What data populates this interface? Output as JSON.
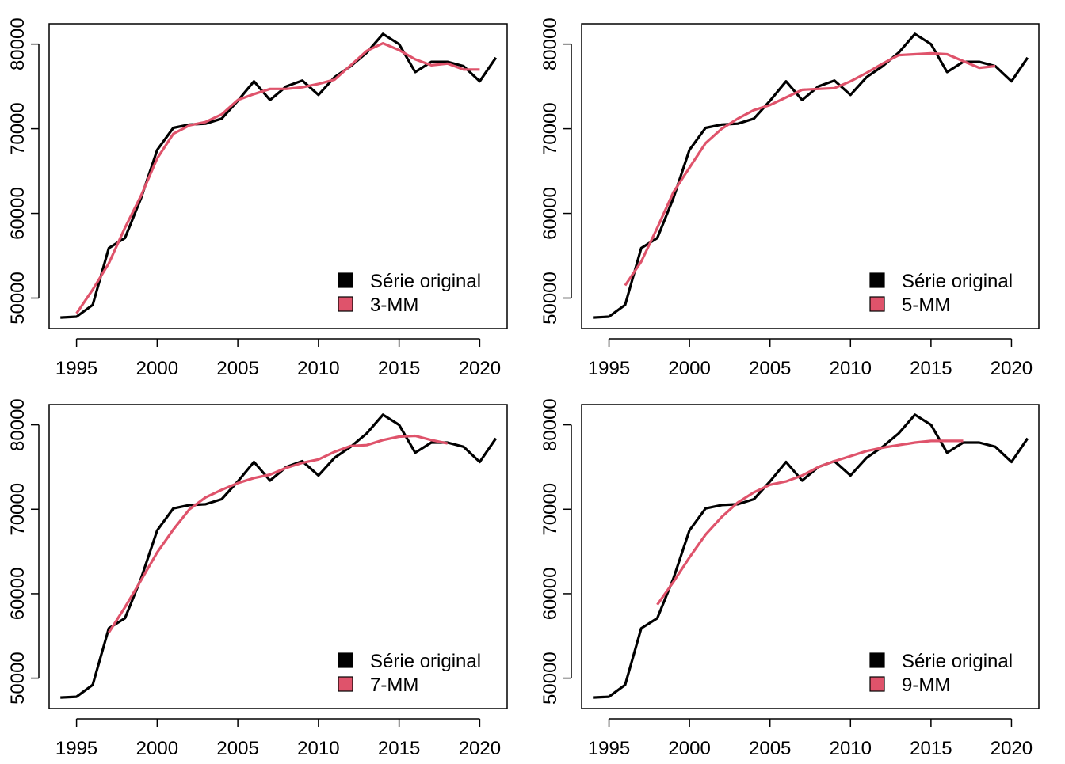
{
  "chart_data": [
    {
      "type": "line",
      "title": "",
      "xlabel": "",
      "ylabel": "",
      "xlim": [
        1993.3,
        2021.7
      ],
      "ylim": [
        46400,
        82400
      ],
      "x_ticks": [
        1995,
        2000,
        2005,
        2010,
        2015,
        2020
      ],
      "y_ticks": [
        50000,
        60000,
        70000,
        80000
      ],
      "legend_position": "bottom-right",
      "grid": false,
      "series": [
        {
          "name": "Série original",
          "color": "#000000",
          "x": [
            1994,
            1995,
            1996,
            1997,
            1998,
            1999,
            2000,
            2001,
            2002,
            2003,
            2004,
            2005,
            2006,
            2007,
            2008,
            2009,
            2010,
            2011,
            2012,
            2013,
            2014,
            2015,
            2016,
            2017,
            2018,
            2019,
            2020,
            2021
          ],
          "values": [
            47700,
            47800,
            49200,
            55900,
            57100,
            61800,
            67500,
            70100,
            70500,
            70600,
            71200,
            73300,
            75600,
            73400,
            75000,
            75700,
            74000,
            76100,
            77400,
            79000,
            81200,
            80000,
            76700,
            77900,
            77900,
            77400,
            75600,
            78400
          ]
        },
        {
          "name": "3-MM",
          "color": "#DF536B",
          "x": [
            1995,
            1996,
            1997,
            1998,
            1999,
            2000,
            2001,
            2002,
            2003,
            2004,
            2005,
            2006,
            2007,
            2008,
            2009,
            2010,
            2011,
            2012,
            2013,
            2014,
            2015,
            2016,
            2017,
            2018,
            2019,
            2020
          ],
          "values": [
            48200,
            51000,
            54100,
            58300,
            62100,
            66500,
            69400,
            70400,
            70800,
            71700,
            73400,
            74100,
            74700,
            74700,
            74900,
            75300,
            75800,
            77500,
            79200,
            80100,
            79300,
            78200,
            77500,
            77700,
            77000,
            77000
          ]
        }
      ]
    },
    {
      "type": "line",
      "title": "",
      "xlabel": "",
      "ylabel": "",
      "xlim": [
        1993.3,
        2021.7
      ],
      "ylim": [
        46400,
        82400
      ],
      "x_ticks": [
        1995,
        2000,
        2005,
        2010,
        2015,
        2020
      ],
      "y_ticks": [
        50000,
        60000,
        70000,
        80000
      ],
      "legend_position": "bottom-right",
      "grid": false,
      "series": [
        {
          "name": "Série original",
          "color": "#000000",
          "x": [
            1994,
            1995,
            1996,
            1997,
            1998,
            1999,
            2000,
            2001,
            2002,
            2003,
            2004,
            2005,
            2006,
            2007,
            2008,
            2009,
            2010,
            2011,
            2012,
            2013,
            2014,
            2015,
            2016,
            2017,
            2018,
            2019,
            2020,
            2021
          ],
          "values": [
            47700,
            47800,
            49200,
            55900,
            57100,
            61800,
            67500,
            70100,
            70500,
            70600,
            71200,
            73300,
            75600,
            73400,
            75000,
            75700,
            74000,
            76100,
            77400,
            79000,
            81200,
            80000,
            76700,
            77900,
            77900,
            77400,
            75600,
            78400
          ]
        },
        {
          "name": "5-MM",
          "color": "#DF536B",
          "x": [
            1996,
            1997,
            1998,
            1999,
            2000,
            2001,
            2002,
            2003,
            2004,
            2005,
            2006,
            2007,
            2008,
            2009,
            2010,
            2011,
            2012,
            2013,
            2014,
            2015,
            2016,
            2017,
            2018,
            2019
          ],
          "values": [
            51500,
            54300,
            58300,
            62500,
            65400,
            68300,
            70000,
            71200,
            72200,
            72800,
            73700,
            74600,
            74700,
            74800,
            75600,
            76600,
            77700,
            78700,
            78800,
            78900,
            78800,
            78000,
            77200,
            77400
          ]
        }
      ]
    },
    {
      "type": "line",
      "title": "",
      "xlabel": "",
      "ylabel": "",
      "xlim": [
        1993.3,
        2021.7
      ],
      "ylim": [
        46400,
        82400
      ],
      "x_ticks": [
        1995,
        2000,
        2005,
        2010,
        2015,
        2020
      ],
      "y_ticks": [
        50000,
        60000,
        70000,
        80000
      ],
      "legend_position": "bottom-right",
      "grid": false,
      "series": [
        {
          "name": "Série original",
          "color": "#000000",
          "x": [
            1994,
            1995,
            1996,
            1997,
            1998,
            1999,
            2000,
            2001,
            2002,
            2003,
            2004,
            2005,
            2006,
            2007,
            2008,
            2009,
            2010,
            2011,
            2012,
            2013,
            2014,
            2015,
            2016,
            2017,
            2018,
            2019,
            2020,
            2021
          ],
          "values": [
            47700,
            47800,
            49200,
            55900,
            57100,
            61800,
            67500,
            70100,
            70500,
            70600,
            71200,
            73300,
            75600,
            73400,
            75000,
            75700,
            74000,
            76100,
            77400,
            79000,
            81200,
            80000,
            76700,
            77900,
            77900,
            77400,
            75600,
            78400
          ]
        },
        {
          "name": "7-MM",
          "color": "#DF536B",
          "x": [
            1997,
            1998,
            1999,
            2000,
            2001,
            2002,
            2003,
            2004,
            2005,
            2006,
            2007,
            2008,
            2009,
            2010,
            2011,
            2012,
            2013,
            2014,
            2015,
            2016,
            2017,
            2018
          ],
          "values": [
            55400,
            58400,
            61600,
            64900,
            67600,
            70000,
            71400,
            72300,
            73100,
            73700,
            74100,
            74900,
            75500,
            75900,
            76800,
            77500,
            77600,
            78200,
            78600,
            78700,
            78200,
            77800
          ]
        }
      ]
    },
    {
      "type": "line",
      "title": "",
      "xlabel": "",
      "ylabel": "",
      "xlim": [
        1993.3,
        2021.7
      ],
      "ylim": [
        46400,
        82400
      ],
      "x_ticks": [
        1995,
        2000,
        2005,
        2010,
        2015,
        2020
      ],
      "y_ticks": [
        50000,
        60000,
        70000,
        80000
      ],
      "legend_position": "bottom-right",
      "grid": false,
      "series": [
        {
          "name": "Série original",
          "color": "#000000",
          "x": [
            1994,
            1995,
            1996,
            1997,
            1998,
            1999,
            2000,
            2001,
            2002,
            2003,
            2004,
            2005,
            2006,
            2007,
            2008,
            2009,
            2010,
            2011,
            2012,
            2013,
            2014,
            2015,
            2016,
            2017,
            2018,
            2019,
            2020,
            2021
          ],
          "values": [
            47700,
            47800,
            49200,
            55900,
            57100,
            61800,
            67500,
            70100,
            70500,
            70600,
            71200,
            73300,
            75600,
            73400,
            75000,
            75700,
            74000,
            76100,
            77400,
            79000,
            81200,
            80000,
            76700,
            77900,
            77900,
            77400,
            75600,
            78400
          ]
        },
        {
          "name": "9-MM",
          "color": "#DF536B",
          "x": [
            1998,
            1999,
            2000,
            2001,
            2002,
            2003,
            2004,
            2005,
            2006,
            2007,
            2008,
            2009,
            2010,
            2011,
            2012,
            2013,
            2014,
            2015,
            2016,
            2017
          ],
          "values": [
            58700,
            61400,
            64300,
            67000,
            69100,
            70800,
            72000,
            72900,
            73300,
            74000,
            75000,
            75700,
            76300,
            76900,
            77300,
            77600,
            77900,
            78100,
            78100,
            78100
          ]
        }
      ]
    }
  ]
}
